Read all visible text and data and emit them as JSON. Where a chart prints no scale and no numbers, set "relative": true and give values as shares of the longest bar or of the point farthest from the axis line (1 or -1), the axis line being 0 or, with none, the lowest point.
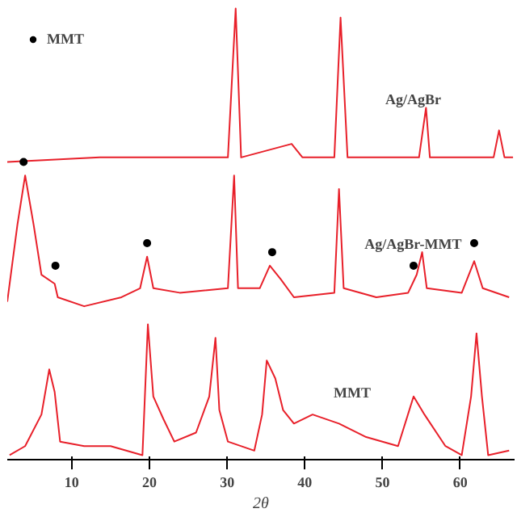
{
  "chart_data": {
    "type": "line",
    "xlabel": "2θ",
    "relative": true,
    "xlim": [
      1.7,
      67
    ],
    "xticks": [
      10,
      20,
      30,
      40,
      50,
      60
    ],
    "tick_labels": "x",
    "grid": false,
    "legend": "top left",
    "series": [
      {
        "name": "Ag/AgBr",
        "color": "#e8202a",
        "x": [
          1.7,
          13.6,
          21.8,
          30.1,
          31.1,
          31.8,
          38.3,
          39.7,
          43.8,
          44.6,
          45.5,
          54.7,
          55.6,
          56.1,
          64.3,
          65.0,
          65.7,
          66.8
        ],
        "values": [
          0.66,
          0.67,
          0.67,
          0.67,
          1.0,
          0.67,
          0.7,
          0.67,
          0.67,
          0.98,
          0.67,
          0.67,
          0.78,
          0.67,
          0.67,
          0.73,
          0.67,
          0.67
        ]
      },
      {
        "name": "Ag/AgBr-MMT",
        "color": "#e8202a",
        "x": [
          1.7,
          3.0,
          4.0,
          5.1,
          6.1,
          7.8,
          8.2,
          11.6,
          16.4,
          18.8,
          19.7,
          20.5,
          23.9,
          30.1,
          30.9,
          31.4,
          34.2,
          35.5,
          36.9,
          38.6,
          43.8,
          44.4,
          45.0,
          49.2,
          53.3,
          54.4,
          55.1,
          55.7,
          60.2,
          61.8,
          62.9,
          66.3
        ],
        "values": [
          0.35,
          0.52,
          0.63,
          0.52,
          0.41,
          0.39,
          0.36,
          0.34,
          0.36,
          0.38,
          0.45,
          0.38,
          0.37,
          0.38,
          0.63,
          0.38,
          0.38,
          0.43,
          0.4,
          0.36,
          0.37,
          0.6,
          0.38,
          0.36,
          0.37,
          0.41,
          0.46,
          0.38,
          0.37,
          0.44,
          0.38,
          0.36
        ]
      },
      {
        "name": "MMT",
        "color": "#e8202a",
        "x": [
          2.0,
          4.0,
          6.1,
          7.1,
          7.8,
          8.5,
          11.6,
          15.0,
          19.1,
          19.8,
          20.5,
          21.8,
          23.2,
          26.0,
          27.7,
          28.5,
          29.0,
          30.1,
          33.5,
          34.5,
          35.1,
          36.2,
          37.2,
          38.6,
          41.0,
          44.4,
          47.9,
          52.0,
          54.0,
          55.4,
          58.1,
          60.2,
          61.4,
          62.1,
          62.8,
          63.6,
          66.3
        ],
        "values": [
          0.01,
          0.03,
          0.1,
          0.2,
          0.15,
          0.04,
          0.03,
          0.03,
          0.01,
          0.3,
          0.14,
          0.09,
          0.04,
          0.06,
          0.14,
          0.27,
          0.11,
          0.04,
          0.02,
          0.1,
          0.22,
          0.18,
          0.11,
          0.08,
          0.1,
          0.08,
          0.05,
          0.03,
          0.14,
          0.1,
          0.03,
          0.01,
          0.14,
          0.28,
          0.14,
          0.01,
          0.02
        ]
      },
      {
        "name": "MMT",
        "type": "scatter",
        "marker": "circle",
        "color": "#000000",
        "x": [
          3.8,
          7.9,
          19.7,
          35.8,
          54.0,
          61.8
        ],
        "values": [
          0.66,
          0.43,
          0.48,
          0.46,
          0.43,
          0.48
        ]
      }
    ]
  }
}
